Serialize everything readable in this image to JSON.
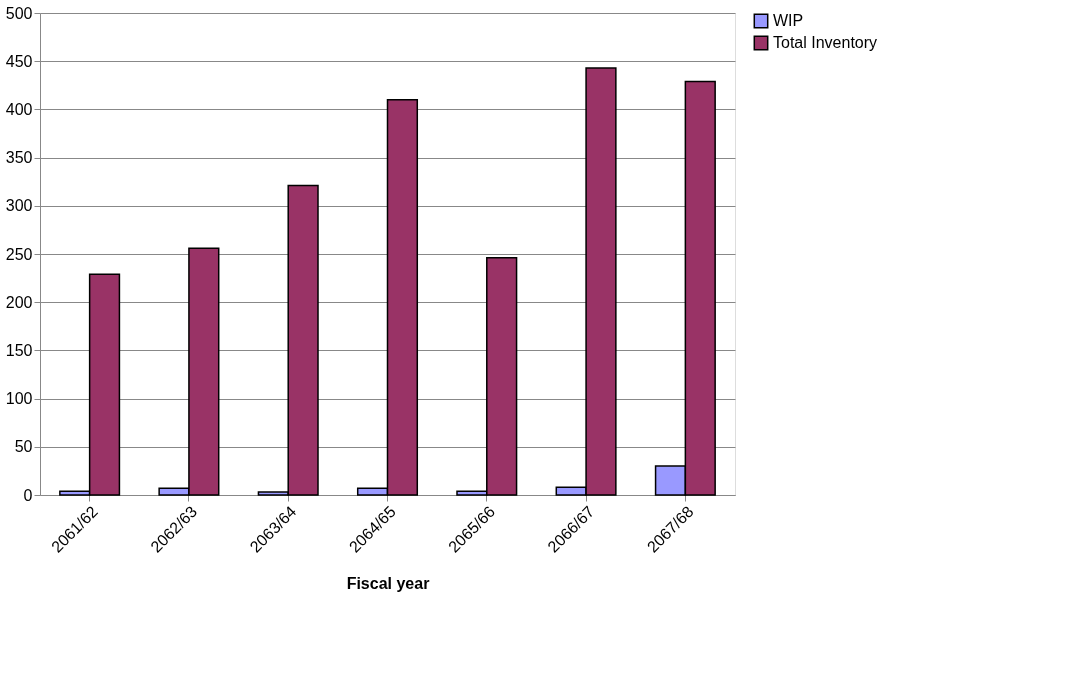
{
  "chart_data": {
    "type": "bar",
    "xlabel": "Fiscal year",
    "categories": [
      "2061/62",
      "2062/63",
      "2063/64",
      "2064/65",
      "2065/66",
      "2066/67",
      "2067/68"
    ],
    "series": [
      {
        "name": "WIP",
        "color": "#9999ff",
        "values": [
          4,
          7,
          3,
          7,
          4,
          8,
          30
        ]
      },
      {
        "name": "Total Inventory",
        "color": "#993366",
        "values": [
          229,
          256,
          321,
          410,
          246,
          443,
          429
        ]
      }
    ],
    "ylim": [
      0,
      500
    ],
    "yticks": [
      0,
      50,
      100,
      150,
      200,
      250,
      300,
      350,
      400,
      450,
      500
    ],
    "grid": "y",
    "legend": "right"
  }
}
